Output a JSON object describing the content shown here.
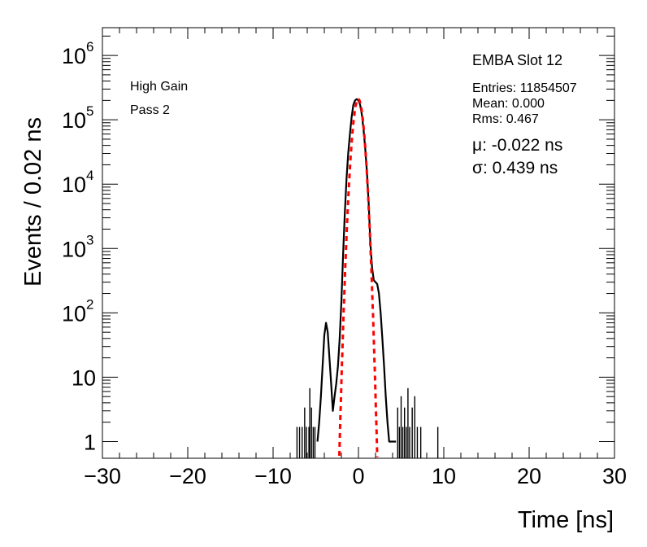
{
  "chart_data": {
    "type": "line",
    "xlabel": "Time [ns]",
    "ylabel": "Events / 0.02 ns",
    "xlim": [
      -30,
      30
    ],
    "ylim": [
      0.55,
      2700000
    ],
    "yscale": "log",
    "x_ticks": [
      {
        "value": -30,
        "label": "−30"
      },
      {
        "value": -20,
        "label": "−20"
      },
      {
        "value": -10,
        "label": "−10"
      },
      {
        "value": 0,
        "label": "0"
      },
      {
        "value": 10,
        "label": "10"
      },
      {
        "value": 20,
        "label": "20"
      },
      {
        "value": 30,
        "label": "30"
      }
    ],
    "y_ticks": [
      {
        "value": 1,
        "label": "1",
        "exp": ""
      },
      {
        "value": 10,
        "label": "10",
        "exp": ""
      },
      {
        "value": 100,
        "label": "10",
        "exp": "2"
      },
      {
        "value": 1000,
        "label": "10",
        "exp": "3"
      },
      {
        "value": 10000,
        "label": "10",
        "exp": "4"
      },
      {
        "value": 100000,
        "label": "10",
        "exp": "5"
      },
      {
        "value": 1000000,
        "label": "10",
        "exp": "6"
      }
    ],
    "series": [
      {
        "kind": "histogram",
        "color": "#000000",
        "x": [
          -4.8,
          -4.6,
          -4.4,
          -4.2,
          -4.0,
          -3.8,
          -3.6,
          -3.4,
          -3.2,
          -3.0,
          -2.8,
          -2.6,
          -2.4,
          -2.2,
          -2.0,
          -1.8,
          -1.6,
          -1.4,
          -1.2,
          -1.0,
          -0.8,
          -0.6,
          -0.4,
          -0.2,
          0.0,
          0.2,
          0.4,
          0.6,
          0.8,
          1.0,
          1.2,
          1.4,
          1.6,
          1.8,
          2.0,
          2.2,
          2.4,
          2.6,
          2.8,
          3.0,
          3.2,
          3.4,
          3.6,
          3.8,
          4.0,
          4.2,
          4.4
        ],
        "y": [
          1,
          2,
          5,
          15,
          45,
          70,
          50,
          20,
          8,
          3,
          5,
          8,
          15,
          40,
          150,
          800,
          3500,
          12000,
          30000,
          60000,
          110000,
          170000,
          200000,
          210000,
          200000,
          170000,
          120000,
          70000,
          35000,
          15000,
          5000,
          1200,
          500,
          320,
          300,
          280,
          200,
          100,
          40,
          15,
          5,
          2,
          1,
          1,
          1,
          1,
          1
        ]
      },
      {
        "name": "Gaussian fit",
        "kind": "fit",
        "color": "#ff0000",
        "mu": -0.022,
        "sigma": 0.439,
        "amplitude": 210000,
        "x_range": [
          -2.3,
          2.3
        ]
      },
      {
        "kind": "sparse_spikes",
        "color": "#000000",
        "x": [
          -7.2,
          -6.9,
          -6.6,
          -6.3,
          -6.1,
          -5.8,
          -5.7,
          -5.5,
          -5.3,
          -5.1,
          4.6,
          4.8,
          5.0,
          5.2,
          5.4,
          5.6,
          5.8,
          6.0,
          6.3,
          6.6,
          6.9,
          7.3,
          9.3
        ],
        "y": [
          1,
          1,
          1,
          2,
          1,
          1,
          4,
          2,
          1,
          1,
          2,
          1,
          3,
          1,
          2,
          1,
          4,
          1,
          2,
          3,
          1,
          1,
          1
        ]
      }
    ],
    "annotations": {
      "gain": "High Gain",
      "pass": "Pass 2",
      "module": "EMBA Slot 12",
      "entries": "Entries: 11854507",
      "mean": "Mean: 0.000",
      "rms": "Rms: 0.467",
      "mu": "μ: -0.022 ns",
      "sigma": "σ: 0.439 ns"
    },
    "grid": false,
    "legend": "none"
  }
}
